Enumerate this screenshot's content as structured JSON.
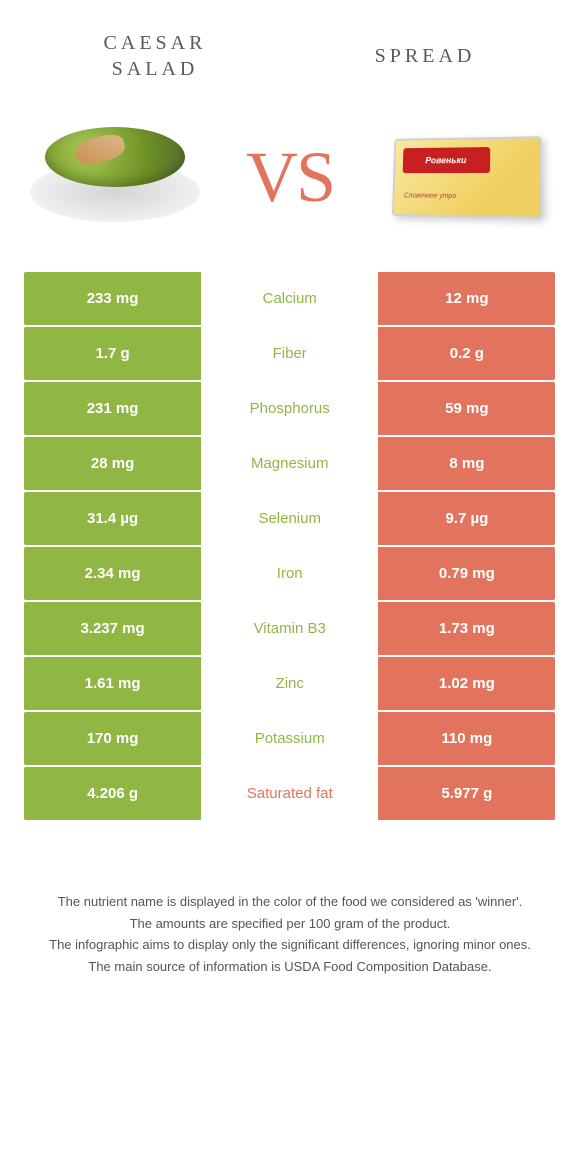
{
  "colors": {
    "green": "#90b744",
    "orange": "#e2745e",
    "nutrient_green": "#90b744",
    "nutrient_orange": "#e2745e",
    "text_gray": "#5a5a5a"
  },
  "food_left": {
    "title": "CAESAR\nSALAD"
  },
  "food_right": {
    "title": "SPREAD"
  },
  "vs_label": "VS",
  "spread_brand": "Ровеньки",
  "spread_sub": "Сливочное утро",
  "nutrients": [
    {
      "name": "Calcium",
      "left": "233 mg",
      "right": "12 mg",
      "winner": "left"
    },
    {
      "name": "Fiber",
      "left": "1.7 g",
      "right": "0.2 g",
      "winner": "left"
    },
    {
      "name": "Phosphorus",
      "left": "231 mg",
      "right": "59 mg",
      "winner": "left"
    },
    {
      "name": "Magnesium",
      "left": "28 mg",
      "right": "8 mg",
      "winner": "left"
    },
    {
      "name": "Selenium",
      "left": "31.4 µg",
      "right": "9.7 µg",
      "winner": "left"
    },
    {
      "name": "Iron",
      "left": "2.34 mg",
      "right": "0.79 mg",
      "winner": "left"
    },
    {
      "name": "Vitamin B3",
      "left": "3.237 mg",
      "right": "1.73 mg",
      "winner": "left"
    },
    {
      "name": "Zinc",
      "left": "1.61 mg",
      "right": "1.02 mg",
      "winner": "left"
    },
    {
      "name": "Potassium",
      "left": "170 mg",
      "right": "110 mg",
      "winner": "left"
    },
    {
      "name": "Saturated fat",
      "left": "4.206 g",
      "right": "5.977 g",
      "winner": "right"
    }
  ],
  "footer": [
    "The nutrient name is displayed in the color of the food we considered as 'winner'.",
    "The amounts are specified per 100 gram of the product.",
    "The infographic aims to display only the significant differences, ignoring minor ones.",
    "The main source of information is USDA Food Composition Database."
  ]
}
